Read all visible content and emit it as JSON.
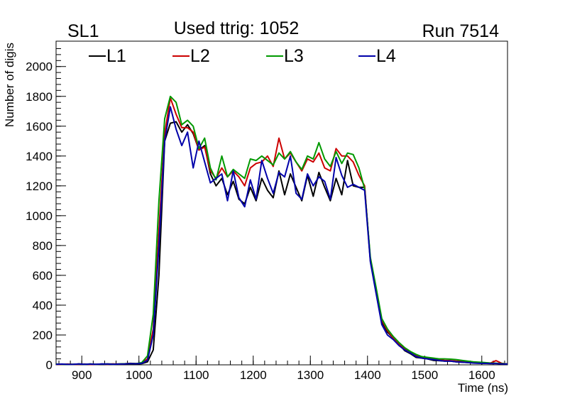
{
  "chart_data": {
    "type": "line",
    "corner_left": "SL1",
    "title": "Used ttrig: 1052",
    "corner_right": "Run 7514",
    "xlabel": "Time (ns)",
    "ylabel": "Number of digis",
    "xlim": [
      855,
      1645
    ],
    "ylim": [
      0,
      2170
    ],
    "xticks": [
      900,
      1000,
      1100,
      1200,
      1300,
      1400,
      1500,
      1600
    ],
    "yticks": [
      0,
      200,
      400,
      600,
      800,
      1000,
      1200,
      1400,
      1600,
      1800,
      2000
    ],
    "grid": false,
    "legend_position": "top-left",
    "x": [
      855,
      865,
      875,
      885,
      895,
      905,
      915,
      925,
      935,
      945,
      955,
      965,
      975,
      985,
      995,
      1005,
      1015,
      1025,
      1035,
      1045,
      1055,
      1065,
      1075,
      1085,
      1095,
      1105,
      1115,
      1125,
      1135,
      1145,
      1155,
      1165,
      1175,
      1185,
      1195,
      1205,
      1215,
      1225,
      1235,
      1245,
      1255,
      1265,
      1275,
      1285,
      1295,
      1305,
      1315,
      1325,
      1335,
      1345,
      1355,
      1365,
      1375,
      1385,
      1395,
      1405,
      1415,
      1425,
      1435,
      1445,
      1455,
      1465,
      1475,
      1485,
      1495,
      1505,
      1515,
      1525,
      1535,
      1545,
      1555,
      1565,
      1575,
      1585,
      1595,
      1605,
      1615,
      1625,
      1635,
      1645
    ],
    "series": [
      {
        "name": "L1",
        "color": "#000000",
        "values": [
          5,
          3,
          4,
          3,
          6,
          4,
          5,
          3,
          4,
          6,
          5,
          4,
          6,
          8,
          5,
          8,
          20,
          100,
          600,
          1500,
          1620,
          1630,
          1560,
          1610,
          1550,
          1440,
          1470,
          1280,
          1200,
          1250,
          1140,
          1230,
          1110,
          1080,
          1190,
          1100,
          1250,
          1170,
          1120,
          1300,
          1140,
          1280,
          1190,
          1100,
          1270,
          1130,
          1290,
          1190,
          1100,
          1250,
          1140,
          1370,
          1200,
          1190,
          1190,
          700,
          500,
          290,
          220,
          180,
          140,
          95,
          75,
          50,
          45,
          40,
          30,
          28,
          25,
          25,
          20,
          18,
          15,
          15,
          12,
          10,
          12,
          10,
          8,
          5
        ]
      },
      {
        "name": "L2",
        "color": "#cc0000",
        "values": [
          4,
          3,
          5,
          3,
          4,
          5,
          3,
          4,
          5,
          4,
          6,
          5,
          7,
          10,
          8,
          12,
          40,
          240,
          900,
          1550,
          1790,
          1680,
          1590,
          1590,
          1560,
          1440,
          1460,
          1300,
          1250,
          1320,
          1260,
          1300,
          1260,
          1200,
          1320,
          1350,
          1360,
          1400,
          1330,
          1520,
          1380,
          1420,
          1360,
          1300,
          1380,
          1360,
          1420,
          1320,
          1300,
          1450,
          1400,
          1400,
          1360,
          1270,
          1200,
          700,
          510,
          300,
          230,
          180,
          140,
          110,
          80,
          60,
          50,
          45,
          40,
          35,
          30,
          28,
          25,
          22,
          20,
          18,
          15,
          14,
          12,
          28,
          10,
          5
        ]
      },
      {
        "name": "L3",
        "color": "#009900",
        "values": [
          5,
          4,
          3,
          4,
          5,
          4,
          6,
          4,
          5,
          5,
          4,
          6,
          7,
          9,
          8,
          15,
          60,
          340,
          1100,
          1650,
          1800,
          1760,
          1610,
          1640,
          1600,
          1450,
          1520,
          1320,
          1240,
          1400,
          1260,
          1310,
          1280,
          1250,
          1380,
          1370,
          1400,
          1370,
          1340,
          1420,
          1380,
          1430,
          1360,
          1310,
          1400,
          1380,
          1490,
          1380,
          1330,
          1430,
          1350,
          1420,
          1410,
          1320,
          1180,
          720,
          520,
          310,
          240,
          190,
          150,
          115,
          90,
          70,
          55,
          50,
          45,
          40,
          40,
          38,
          35,
          30,
          25,
          20,
          18,
          15,
          12,
          10,
          8,
          5
        ]
      },
      {
        "name": "L4",
        "color": "#0000aa",
        "values": [
          4,
          5,
          3,
          4,
          6,
          4,
          5,
          4,
          6,
          5,
          4,
          5,
          6,
          8,
          7,
          10,
          30,
          200,
          800,
          1500,
          1730,
          1580,
          1470,
          1560,
          1320,
          1500,
          1360,
          1220,
          1250,
          1280,
          1100,
          1300,
          1120,
          1060,
          1240,
          1110,
          1370,
          1250,
          1150,
          1290,
          1260,
          1400,
          1150,
          1110,
          1280,
          1200,
          1260,
          1230,
          1110,
          1390,
          1270,
          1190,
          1210,
          1190,
          1170,
          690,
          480,
          270,
          200,
          170,
          130,
          100,
          80,
          55,
          45,
          40,
          35,
          30,
          25,
          25,
          20,
          18,
          15,
          12,
          10,
          10,
          8,
          8,
          6,
          5
        ]
      }
    ]
  }
}
